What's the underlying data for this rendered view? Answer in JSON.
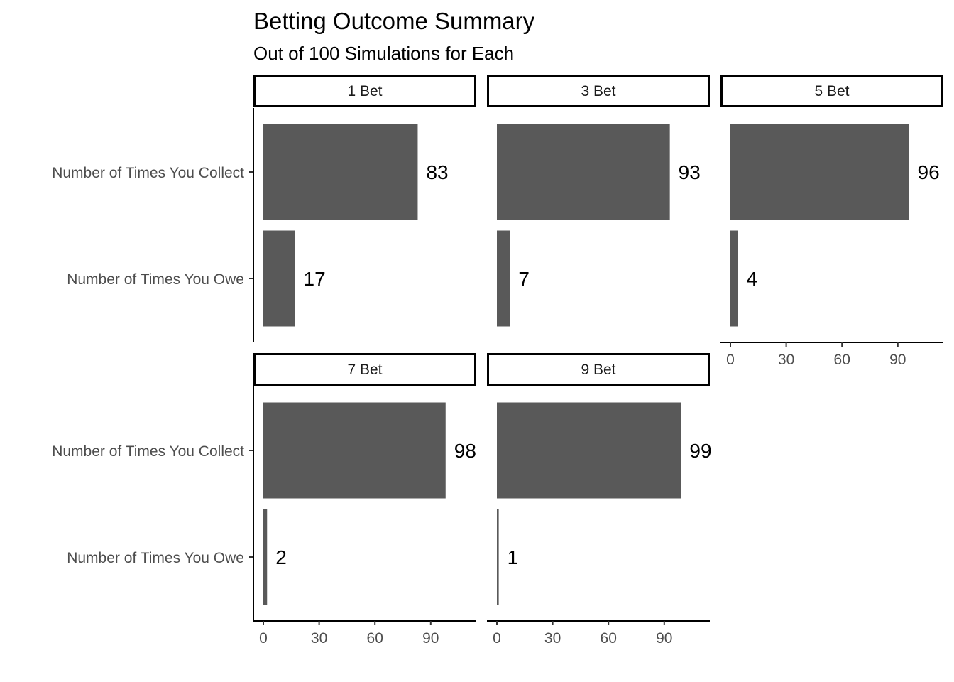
{
  "chart_data": {
    "type": "bar",
    "orientation": "horizontal",
    "title": "Betting Outcome Summary",
    "subtitle": "Out of 100 Simulations for Each",
    "categories": [
      "Number of Times You Collect",
      "Number of Times You Owe"
    ],
    "x_ticks": [
      0,
      30,
      60,
      90
    ],
    "xlim": [
      0,
      100
    ],
    "bar_color": "#595959",
    "facets": [
      {
        "label": "1 Bet",
        "values": [
          83,
          17
        ]
      },
      {
        "label": "3 Bet",
        "values": [
          93,
          7
        ]
      },
      {
        "label": "5 Bet",
        "values": [
          96,
          4
        ]
      },
      {
        "label": "7 Bet",
        "values": [
          98,
          2
        ]
      },
      {
        "label": "9 Bet",
        "values": [
          99,
          1
        ]
      }
    ]
  }
}
